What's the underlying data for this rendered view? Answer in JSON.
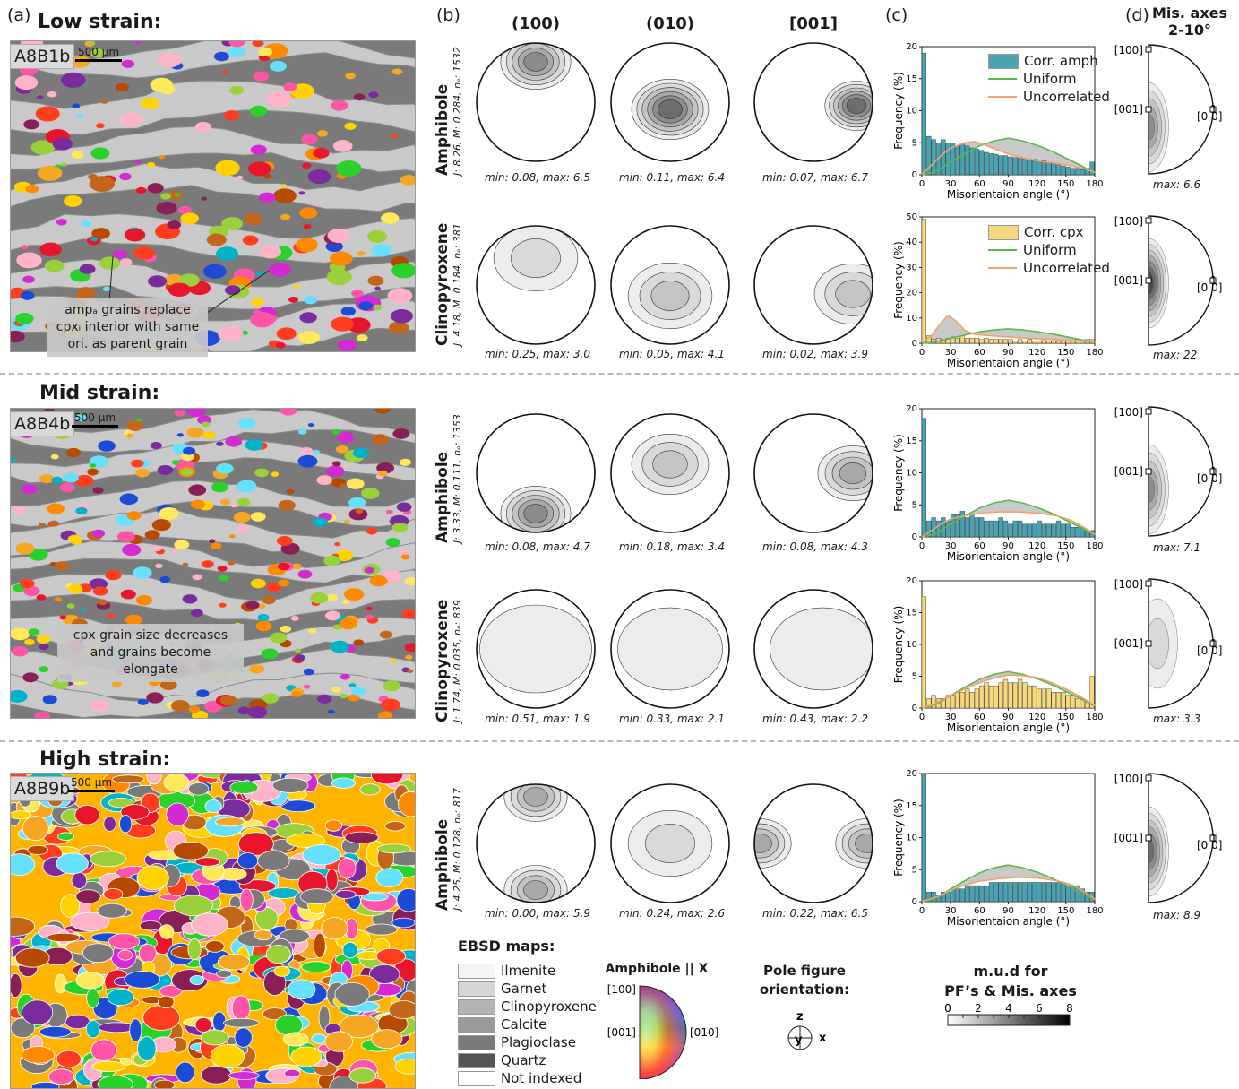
{
  "panels": {
    "a": "(a)",
    "b": "(b)",
    "c": "(c)",
    "d": "(d)"
  },
  "pole_cols": [
    "(100)",
    "(010)",
    "[001]"
  ],
  "misaxes_title": [
    "Mis. axes",
    "2-10°"
  ],
  "strain_sections": [
    {
      "title": "Low strain:",
      "sample": "A8B1b",
      "scale": "500 µm",
      "note_lines": [
        "ampₐ grains replace",
        "cpxᵢ interior with same",
        "ori. as parent grain"
      ],
      "rows": [
        {
          "mineral": "Amphibole",
          "stats": "J: 8.26, M: 0.284, nₑ: 1532",
          "pf_caps": [
            "min: 0.08, max: 6.5",
            "min: 0.11, max: 6.4",
            "min: 0.07, max: 6.7"
          ],
          "legend": [
            "Corr. amph",
            "Uniform",
            "Uncorrelated"
          ],
          "misax_cap": "max: 6.6"
        },
        {
          "mineral": "Clinopyroxene",
          "stats": "J: 4.18, M: 0.184, nₑ: 381",
          "pf_caps": [
            "min: 0.25, max: 3.0",
            "min: 0.05, max: 4.1",
            "min: 0.02, max: 3.9"
          ],
          "legend": [
            "Corr. cpx",
            "Uniform",
            "Uncorrelated"
          ],
          "misax_cap": "max: 22"
        }
      ]
    },
    {
      "title": "Mid strain:",
      "sample": "A8B4b",
      "scale": "500 µm",
      "note_lines": [
        "cpx grain size decreases",
        "and grains become elongate"
      ],
      "rows": [
        {
          "mineral": "Amphibole",
          "stats": "J: 3.33, M: 0.111, nₑ: 1353",
          "pf_caps": [
            "min: 0.08, max: 4.7",
            "min: 0.18, max: 3.4",
            "min: 0.08, max: 4.3"
          ],
          "legend": [],
          "misax_cap": "max: 7.1"
        },
        {
          "mineral": "Clinopyroxene",
          "stats": "J: 1.74, M: 0.035, nₑ: 839",
          "pf_caps": [
            "min: 0.51, max: 1.9",
            "min: 0.33, max: 2.1",
            "min: 0.43, max: 2.2"
          ],
          "legend": [],
          "misax_cap": "max: 3.3"
        }
      ]
    },
    {
      "title": "High strain:",
      "sample": "A8B9b",
      "scale": "500 µm",
      "note_lines": [],
      "rows": [
        {
          "mineral": "Amphibole",
          "stats": "J: 4.25, M: 0.128, nₑ: 817",
          "pf_caps": [
            "min: 0.00, max: 5.9",
            "min: 0.24, max: 2.6",
            "min: 0.22, max: 6.5"
          ],
          "legend": [],
          "misax_cap": "max: 8.9"
        }
      ]
    }
  ],
  "hist_axis": {
    "ylabel": "Frequency (%)",
    "xlabel": "Misorientaion angle (°)",
    "xticks": [
      "0",
      "30",
      "60",
      "90",
      "120",
      "150",
      "180"
    ]
  },
  "misax_labels": {
    "top": "[100]",
    "mid": "[001]",
    "right": "[0 0]",
    "right_digit": "1"
  },
  "legend_ebsd": {
    "title": "EBSD maps:",
    "items": [
      {
        "label": "Ilmenite",
        "color": "#f4f4f4"
      },
      {
        "label": "Garnet",
        "color": "#d6d6d6"
      },
      {
        "label": "Clinopyroxene",
        "color": "#b4b4b4"
      },
      {
        "label": "Calcite",
        "color": "#9a9a9a"
      },
      {
        "label": "Plagioclase",
        "color": "#7a7a7a"
      },
      {
        "label": "Quartz",
        "color": "#555555"
      },
      {
        "label": "Not indexed",
        "color": "#ffffff"
      }
    ]
  },
  "ipf_key": {
    "title": "Amphibole || X",
    "l100": "[100]",
    "l001": "[001]",
    "l010": "[010]"
  },
  "pf_orient": {
    "title_lines": [
      "Pole figure",
      "orientation:"
    ],
    "z": "z",
    "y": "y",
    "x": "x"
  },
  "mud": {
    "title_lines": [
      "m.u.d for",
      "PF’s & Mis. axes"
    ],
    "ticks": [
      "0",
      "2",
      "4",
      "6",
      "8"
    ]
  },
  "colors": {
    "amph": "#4aa3b5",
    "cpx": "#f7d77e",
    "uniform": "#59b94a",
    "uncorrelated": "#f5a06a",
    "boundary_fill": "#c9c9c9"
  },
  "chart_data": [
    {
      "type": "bar",
      "name": "amph-low",
      "x": [
        2.5,
        7.5,
        12.5,
        17.5,
        22.5,
        27.5,
        32.5,
        37.5,
        42.5,
        47.5,
        52.5,
        57.5,
        62.5,
        67.5,
        72.5,
        77.5,
        82.5,
        87.5,
        92.5,
        97.5,
        102.5,
        107.5,
        112.5,
        117.5,
        122.5,
        127.5,
        132.5,
        137.5,
        142.5,
        147.5,
        152.5,
        157.5,
        162.5,
        167.5,
        172.5,
        177.5
      ],
      "series": [
        {
          "name": "Corr. amph",
          "values": [
            19,
            6,
            5.5,
            5,
            5.5,
            5,
            5,
            4.5,
            5,
            4.5,
            4.2,
            4,
            3.8,
            3.5,
            3.3,
            3.2,
            3,
            3,
            2.8,
            2.7,
            2.6,
            2.5,
            2.5,
            2.4,
            2.3,
            2.2,
            2,
            1.8,
            1.6,
            1.4,
            1.2,
            1,
            1,
            0.8,
            1,
            2
          ]
        }
      ],
      "uniform": [
        [
          0,
          0
        ],
        [
          10,
          0.3
        ],
        [
          20,
          1
        ],
        [
          30,
          2
        ],
        [
          45,
          3.3
        ],
        [
          60,
          4.5
        ],
        [
          75,
          5.3
        ],
        [
          90,
          5.7
        ],
        [
          105,
          5.3
        ],
        [
          120,
          4.6
        ],
        [
          135,
          3.7
        ],
        [
          150,
          2.6
        ],
        [
          165,
          1.5
        ],
        [
          180,
          0.3
        ]
      ],
      "uncorrelated": [
        [
          0,
          0
        ],
        [
          10,
          1.5
        ],
        [
          20,
          3
        ],
        [
          30,
          4.2
        ],
        [
          45,
          5
        ],
        [
          55,
          5.2
        ],
        [
          65,
          4.7
        ],
        [
          80,
          3.8
        ],
        [
          95,
          3
        ],
        [
          110,
          2.5
        ],
        [
          125,
          2.1
        ],
        [
          140,
          1.8
        ],
        [
          155,
          1.4
        ],
        [
          170,
          0.9
        ],
        [
          180,
          0.4
        ]
      ],
      "ylim": [
        0,
        20
      ],
      "yticks": [
        0,
        5,
        10,
        15,
        20
      ],
      "xlim": [
        0,
        180
      ]
    },
    {
      "type": "bar",
      "name": "cpx-low",
      "x": [
        2.5,
        7.5,
        12.5,
        17.5,
        22.5,
        27.5,
        32.5,
        37.5,
        42.5,
        47.5,
        52.5,
        57.5,
        62.5,
        67.5,
        72.5,
        77.5,
        82.5,
        87.5,
        92.5,
        97.5,
        102.5,
        107.5,
        112.5,
        117.5,
        122.5,
        127.5,
        132.5,
        137.5,
        142.5,
        147.5,
        152.5,
        157.5,
        162.5,
        167.5,
        172.5,
        177.5
      ],
      "series": [
        {
          "name": "Corr. cpx",
          "values": [
            49,
            3,
            1.5,
            2,
            1.5,
            2,
            2.5,
            2,
            3,
            2,
            2,
            2,
            1.5,
            2,
            1.5,
            1.5,
            1.5,
            1.5,
            1.5,
            1,
            1.5,
            1,
            1.5,
            1,
            1,
            1.5,
            1,
            1,
            1.5,
            1,
            1,
            1,
            1.5,
            1,
            1.5,
            1.5
          ]
        }
      ],
      "uniform": [
        [
          0,
          0
        ],
        [
          10,
          0.3
        ],
        [
          20,
          1
        ],
        [
          30,
          2
        ],
        [
          45,
          3.3
        ],
        [
          60,
          4.5
        ],
        [
          75,
          5.3
        ],
        [
          90,
          5.7
        ],
        [
          105,
          5.3
        ],
        [
          120,
          4.6
        ],
        [
          135,
          3.7
        ],
        [
          150,
          2.6
        ],
        [
          165,
          1.5
        ],
        [
          180,
          0.3
        ]
      ],
      "uncorrelated": [
        [
          0,
          0
        ],
        [
          10,
          3
        ],
        [
          20,
          8
        ],
        [
          27,
          11
        ],
        [
          35,
          9
        ],
        [
          45,
          5
        ],
        [
          55,
          3.5
        ],
        [
          70,
          3
        ],
        [
          90,
          2.5
        ],
        [
          110,
          2
        ],
        [
          130,
          1.6
        ],
        [
          150,
          1.2
        ],
        [
          170,
          0.8
        ],
        [
          180,
          0.4
        ]
      ],
      "ylim": [
        0,
        50
      ],
      "yticks": [
        0,
        10,
        20,
        30,
        40,
        50
      ],
      "xlim": [
        0,
        180
      ]
    },
    {
      "type": "bar",
      "name": "amph-mid",
      "x": [
        2.5,
        7.5,
        12.5,
        17.5,
        22.5,
        27.5,
        32.5,
        37.5,
        42.5,
        47.5,
        52.5,
        57.5,
        62.5,
        67.5,
        72.5,
        77.5,
        82.5,
        87.5,
        92.5,
        97.5,
        102.5,
        107.5,
        112.5,
        117.5,
        122.5,
        127.5,
        132.5,
        137.5,
        142.5,
        147.5,
        152.5,
        157.5,
        162.5,
        167.5,
        172.5,
        177.5
      ],
      "series": [
        {
          "name": "Corr. amph",
          "values": [
            18.5,
            2.5,
            3,
            2.5,
            3,
            2.5,
            3.5,
            3.5,
            4,
            3,
            3.5,
            3,
            3,
            2.5,
            2.5,
            2.5,
            3,
            2.5,
            2,
            2.5,
            2.5,
            2,
            2,
            2,
            2.5,
            2,
            2,
            2,
            2.5,
            2,
            2,
            1.5,
            1.5,
            1.5,
            1,
            1
          ]
        }
      ],
      "uniform": [
        [
          0,
          0
        ],
        [
          10,
          0.3
        ],
        [
          20,
          1
        ],
        [
          30,
          2
        ],
        [
          45,
          3.3
        ],
        [
          60,
          4.5
        ],
        [
          75,
          5.3
        ],
        [
          90,
          5.7
        ],
        [
          105,
          5.3
        ],
        [
          120,
          4.6
        ],
        [
          135,
          3.7
        ],
        [
          150,
          2.6
        ],
        [
          165,
          1.5
        ],
        [
          180,
          0.3
        ]
      ],
      "uncorrelated": [
        [
          0,
          0
        ],
        [
          10,
          1
        ],
        [
          20,
          2
        ],
        [
          30,
          2.8
        ],
        [
          45,
          3.3
        ],
        [
          60,
          3.7
        ],
        [
          80,
          3.9
        ],
        [
          100,
          3.9
        ],
        [
          120,
          3.7
        ],
        [
          140,
          3.3
        ],
        [
          155,
          2.6
        ],
        [
          165,
          1.8
        ],
        [
          175,
          0.9
        ],
        [
          180,
          0.4
        ]
      ],
      "ylim": [
        0,
        20
      ],
      "yticks": [
        0,
        5,
        10,
        15,
        20
      ],
      "xlim": [
        0,
        180
      ]
    },
    {
      "type": "bar",
      "name": "cpx-mid",
      "x": [
        2.5,
        7.5,
        12.5,
        17.5,
        22.5,
        27.5,
        32.5,
        37.5,
        42.5,
        47.5,
        52.5,
        57.5,
        62.5,
        67.5,
        72.5,
        77.5,
        82.5,
        87.5,
        92.5,
        97.5,
        102.5,
        107.5,
        112.5,
        117.5,
        122.5,
        127.5,
        132.5,
        137.5,
        142.5,
        147.5,
        152.5,
        157.5,
        162.5,
        167.5,
        172.5,
        177.5
      ],
      "series": [
        {
          "name": "Corr. cpx",
          "values": [
            17.5,
            1.5,
            2,
            1.5,
            1.5,
            2,
            2,
            2.5,
            2.5,
            3,
            2.5,
            3,
            3.5,
            4,
            3.5,
            3.5,
            4,
            4.5,
            4,
            4,
            4.5,
            4,
            3.5,
            3.5,
            3,
            3,
            3,
            2.5,
            2.5,
            2.5,
            2,
            2,
            1.5,
            1.5,
            1,
            5
          ]
        }
      ],
      "uniform": [
        [
          0,
          0
        ],
        [
          10,
          0.3
        ],
        [
          20,
          1
        ],
        [
          30,
          2
        ],
        [
          45,
          3.3
        ],
        [
          60,
          4.5
        ],
        [
          75,
          5.3
        ],
        [
          90,
          5.7
        ],
        [
          105,
          5.3
        ],
        [
          120,
          4.6
        ],
        [
          135,
          3.7
        ],
        [
          150,
          2.6
        ],
        [
          165,
          1.5
        ],
        [
          180,
          0.3
        ]
      ],
      "uncorrelated": [
        [
          0,
          0
        ],
        [
          10,
          0.5
        ],
        [
          20,
          1.2
        ],
        [
          30,
          2
        ],
        [
          45,
          3
        ],
        [
          60,
          4
        ],
        [
          75,
          4.7
        ],
        [
          90,
          5.2
        ],
        [
          105,
          5.1
        ],
        [
          120,
          4.8
        ],
        [
          135,
          4
        ],
        [
          150,
          3
        ],
        [
          165,
          1.8
        ],
        [
          180,
          0.4
        ]
      ],
      "ylim": [
        0,
        20
      ],
      "yticks": [
        0,
        5,
        10,
        15,
        20
      ],
      "xlim": [
        0,
        180
      ]
    },
    {
      "type": "bar",
      "name": "amph-high",
      "x": [
        2.5,
        7.5,
        12.5,
        17.5,
        22.5,
        27.5,
        32.5,
        37.5,
        42.5,
        47.5,
        52.5,
        57.5,
        62.5,
        67.5,
        72.5,
        77.5,
        82.5,
        87.5,
        92.5,
        97.5,
        102.5,
        107.5,
        112.5,
        117.5,
        122.5,
        127.5,
        132.5,
        137.5,
        142.5,
        147.5,
        152.5,
        157.5,
        162.5,
        167.5,
        172.5,
        177.5
      ],
      "series": [
        {
          "name": "Corr. amph",
          "values": [
            20,
            1.5,
            1.5,
            1,
            1.5,
            1.5,
            2,
            2,
            2,
            2.5,
            2.5,
            2.5,
            2.5,
            2.5,
            3,
            3,
            3,
            3,
            3,
            3,
            3,
            3,
            3,
            3,
            3,
            3,
            3,
            3,
            3,
            3,
            2.5,
            2.5,
            2.5,
            2,
            1.5,
            1.5
          ]
        }
      ],
      "uniform": [
        [
          0,
          0
        ],
        [
          10,
          0.3
        ],
        [
          20,
          1
        ],
        [
          30,
          2
        ],
        [
          45,
          3.3
        ],
        [
          60,
          4.5
        ],
        [
          75,
          5.3
        ],
        [
          90,
          5.7
        ],
        [
          105,
          5.3
        ],
        [
          120,
          4.6
        ],
        [
          135,
          3.7
        ],
        [
          150,
          2.6
        ],
        [
          165,
          1.5
        ],
        [
          180,
          0.3
        ]
      ],
      "uncorrelated": [
        [
          0,
          0
        ],
        [
          10,
          0.5
        ],
        [
          20,
          1
        ],
        [
          30,
          1.8
        ],
        [
          45,
          2.6
        ],
        [
          60,
          3.2
        ],
        [
          80,
          3.6
        ],
        [
          100,
          3.8
        ],
        [
          120,
          3.7
        ],
        [
          140,
          3.3
        ],
        [
          155,
          2.7
        ],
        [
          165,
          1.9
        ],
        [
          175,
          1
        ],
        [
          180,
          0.4
        ]
      ],
      "ylim": [
        0,
        20
      ],
      "yticks": [
        0,
        5,
        10,
        15,
        20
      ],
      "xlim": [
        0,
        180
      ]
    }
  ]
}
